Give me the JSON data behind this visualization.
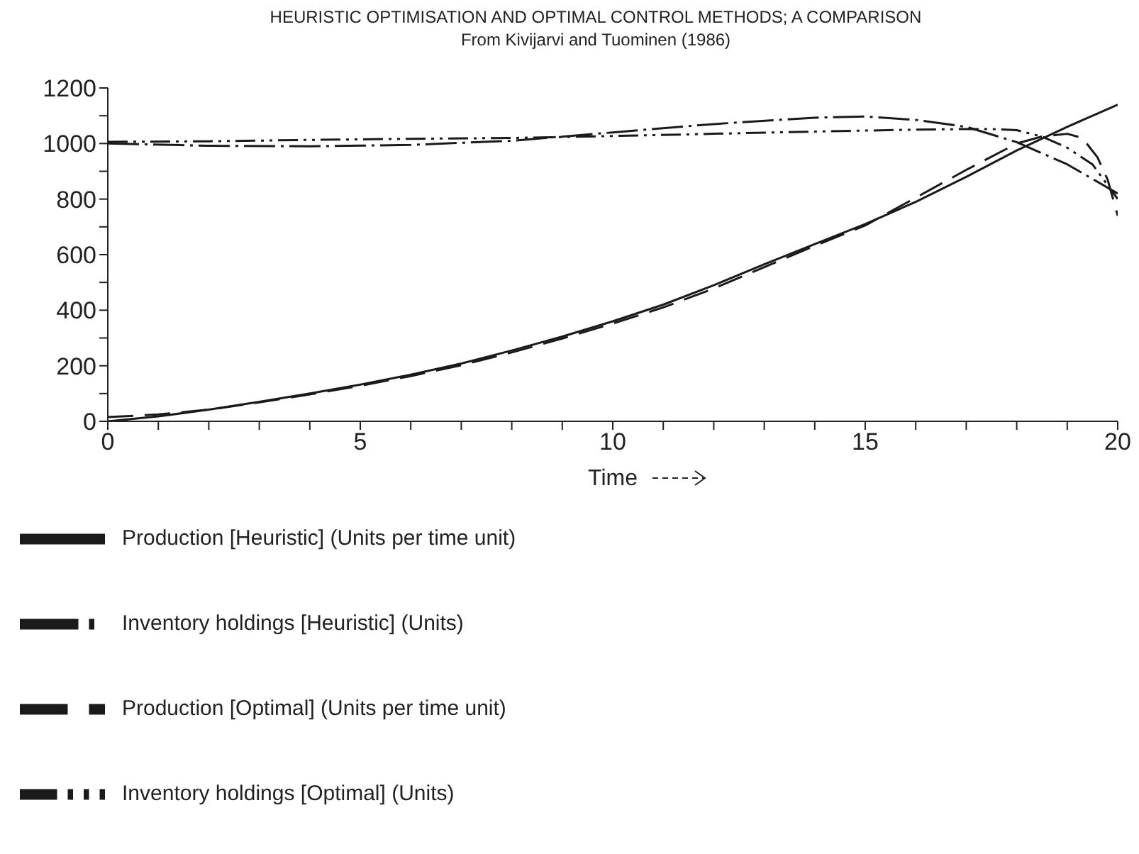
{
  "chart_data": {
    "type": "line",
    "title": "HEURISTIC OPTIMISATION AND OPTIMAL CONTROL METHODS; A COMPARISON",
    "subtitle": "From Kivijarvi and Tuominen (1986)",
    "xlabel": "Time",
    "xlim": [
      0,
      20
    ],
    "xticks": [
      0,
      {
        "value": 1,
        "label": null
      },
      {
        "value": 2,
        "label": null
      },
      {
        "value": 3,
        "label": null
      },
      {
        "value": 4,
        "label": null
      },
      5,
      {
        "value": 6,
        "label": null
      },
      {
        "value": 7,
        "label": null
      },
      {
        "value": 8,
        "label": null
      },
      {
        "value": 9,
        "label": null
      },
      10,
      {
        "value": 11,
        "label": null
      },
      {
        "value": 12,
        "label": null
      },
      {
        "value": 13,
        "label": null
      },
      {
        "value": 14,
        "label": null
      },
      15,
      {
        "value": 16,
        "label": null
      },
      {
        "value": 17,
        "label": null
      },
      {
        "value": 18,
        "label": null
      },
      {
        "value": 19,
        "label": null
      },
      20
    ],
    "ylim": [
      0,
      1200
    ],
    "yticks": [
      0,
      {
        "value": 100,
        "label": null
      },
      200,
      {
        "value": 300,
        "label": null
      },
      400,
      {
        "value": 500,
        "label": null
      },
      600,
      {
        "value": 700,
        "label": null
      },
      800,
      {
        "value": 900,
        "label": null
      },
      1000,
      {
        "value": 1100,
        "label": null
      },
      1200
    ],
    "legend": "bottom",
    "marker": "none",
    "series": [
      {
        "name": "Production [Heuristic] (Units per time unit)",
        "color": "#1a1a1a",
        "line_style": "solid",
        "x": [
          0,
          1,
          2,
          3,
          4,
          5,
          6,
          7,
          8,
          9,
          10,
          11,
          12,
          13,
          14,
          15,
          16,
          17,
          18,
          19,
          20
        ],
        "values": [
          0,
          18,
          42,
          70,
          100,
          132,
          168,
          208,
          255,
          305,
          360,
          420,
          490,
          565,
          638,
          710,
          790,
          880,
          975,
          1060,
          1140
        ]
      },
      {
        "name": "Inventory holdings [Heuristic] (Units)",
        "color": "#1a1a1a",
        "line_style": "dashdot",
        "x": [
          0,
          2,
          4,
          6,
          8,
          10,
          12,
          14,
          15,
          16,
          17,
          18,
          19,
          20
        ],
        "values": [
          1000,
          992,
          990,
          995,
          1010,
          1040,
          1070,
          1093,
          1097,
          1085,
          1060,
          1005,
          925,
          820
        ]
      },
      {
        "name": "Production [Optimal] (Units per time unit)",
        "color": "#1a1a1a",
        "line_style": "dashed",
        "x": [
          0,
          1,
          2,
          3,
          4,
          5,
          6,
          7,
          8,
          9,
          10,
          11,
          12,
          13,
          14,
          15,
          16,
          17,
          18,
          18.5,
          19,
          19.3,
          19.6,
          19.8,
          20
        ],
        "values": [
          15,
          25,
          42,
          68,
          97,
          128,
          163,
          202,
          248,
          298,
          352,
          410,
          478,
          555,
          632,
          705,
          805,
          905,
          1000,
          1025,
          1035,
          1020,
          950,
          870,
          740
        ]
      },
      {
        "name": "Inventory holdings [Optimal] (Units)",
        "color": "#1a1a1a",
        "line_style": "dashdotdot",
        "x": [
          0,
          2,
          4,
          6,
          8,
          10,
          12,
          14,
          16,
          17,
          17.5,
          18,
          18.5,
          19,
          19.5,
          20
        ],
        "values": [
          1006,
          1008,
          1013,
          1017,
          1020,
          1027,
          1035,
          1043,
          1050,
          1052,
          1052,
          1048,
          1025,
          985,
          925,
          800
        ]
      }
    ]
  }
}
